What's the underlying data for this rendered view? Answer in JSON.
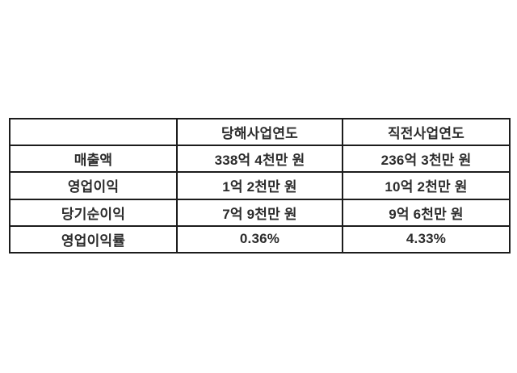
{
  "table": {
    "title": "financial-summary",
    "columns": [
      "",
      "당해사업연도",
      "직전사업연도"
    ],
    "rows": [
      {
        "label": "매출액",
        "current": "338억 4천만 원",
        "previous": "236억 3천만 원"
      },
      {
        "label": "영업이익",
        "current": "1억 2천만 원",
        "previous": "10억 2천만 원"
      },
      {
        "label": "당기순이익",
        "current": "7억 9천만 원",
        "previous": "9억 6천만 원"
      },
      {
        "label": "영업이익률",
        "current": "0.36%",
        "previous": "4.33%"
      }
    ]
  },
  "colors": {
    "background": "#ffffff",
    "border": "#1c1c1c",
    "text": "#2c2c2c"
  }
}
